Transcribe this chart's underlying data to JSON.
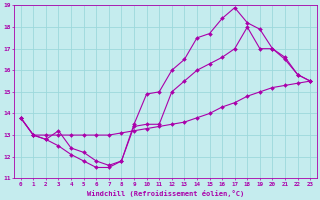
{
  "xlabel": "Windchill (Refroidissement éolien,°C)",
  "background_color": "#c5ecee",
  "grid_color": "#9dd8db",
  "line_color": "#aa00aa",
  "xlim": [
    -0.5,
    23.5
  ],
  "ylim": [
    11,
    19
  ],
  "xticks": [
    0,
    1,
    2,
    3,
    4,
    5,
    6,
    7,
    8,
    9,
    10,
    11,
    12,
    13,
    14,
    15,
    16,
    17,
    18,
    19,
    20,
    21,
    22,
    23
  ],
  "yticks": [
    11,
    12,
    13,
    14,
    15,
    16,
    17,
    18,
    19
  ],
  "series": [
    {
      "x": [
        0,
        1,
        2,
        3,
        4,
        5,
        6,
        7,
        8,
        9,
        10,
        11,
        12,
        13,
        14,
        15,
        16,
        17,
        18,
        19,
        20,
        21,
        22,
        23
      ],
      "y": [
        13.8,
        13.0,
        12.8,
        12.5,
        12.1,
        11.8,
        11.5,
        11.5,
        11.8,
        13.5,
        14.9,
        15.0,
        16.0,
        16.5,
        17.5,
        17.7,
        18.4,
        18.9,
        18.2,
        17.9,
        17.0,
        16.5,
        15.8,
        15.5
      ]
    },
    {
      "x": [
        0,
        1,
        2,
        3,
        4,
        5,
        6,
        7,
        8,
        9,
        10,
        11,
        12,
        13,
        14,
        15,
        16,
        17,
        18,
        19,
        20,
        21,
        22,
        23
      ],
      "y": [
        13.8,
        13.0,
        12.8,
        13.2,
        12.4,
        12.2,
        11.8,
        11.6,
        11.8,
        13.4,
        13.5,
        13.5,
        15.0,
        15.5,
        16.0,
        16.3,
        16.6,
        17.0,
        18.0,
        17.0,
        17.0,
        16.6,
        15.8,
        15.5
      ]
    },
    {
      "x": [
        0,
        1,
        2,
        3,
        4,
        5,
        6,
        7,
        8,
        9,
        10,
        11,
        12,
        13,
        14,
        15,
        16,
        17,
        18,
        19,
        20,
        21,
        22,
        23
      ],
      "y": [
        13.8,
        13.0,
        13.0,
        13.0,
        13.0,
        13.0,
        13.0,
        13.0,
        13.1,
        13.2,
        13.3,
        13.4,
        13.5,
        13.6,
        13.8,
        14.0,
        14.3,
        14.5,
        14.8,
        15.0,
        15.2,
        15.3,
        15.4,
        15.5
      ]
    }
  ]
}
